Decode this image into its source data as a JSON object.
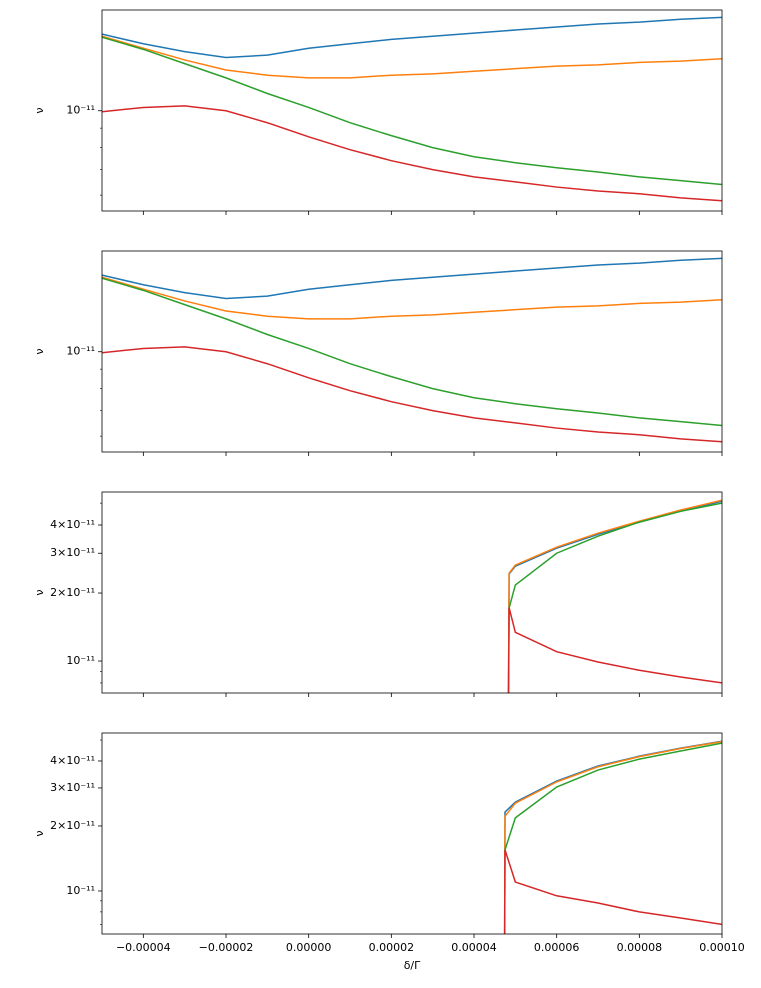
{
  "chart_data": [
    {
      "type": "line",
      "ylabel": "ν",
      "log_y": true,
      "xlim": [
        -5e-05,
        0.0001
      ],
      "xticks": [
        -4e-05,
        -2e-05,
        0,
        2e-05,
        4e-05,
        6e-05,
        8e-05,
        0.0001
      ],
      "ylim": [
        5.45e-12,
        1.84e-11
      ],
      "yticks": [
        {
          "value": 1e-11,
          "label": "10⁻¹¹"
        }
      ],
      "yminorticks": [
        6e-12,
        7e-12,
        8e-12,
        9e-12
      ],
      "x": [
        -5e-05,
        -4e-05,
        -3e-05,
        -2e-05,
        -1e-05,
        0,
        1e-05,
        2e-05,
        3e-05,
        4e-05,
        5e-05,
        6e-05,
        7e-05,
        8e-05,
        9e-05,
        0.0001
      ],
      "series": [
        {
          "color": "#1f77b4",
          "values": [
            1.59e-11,
            1.5e-11,
            1.43e-11,
            1.38e-11,
            1.4e-11,
            1.46e-11,
            1.5e-11,
            1.54e-11,
            1.57e-11,
            1.6e-11,
            1.63e-11,
            1.66e-11,
            1.69e-11,
            1.71e-11,
            1.74e-11,
            1.76e-11
          ]
        },
        {
          "color": "#ff7f0e",
          "values": [
            1.57e-11,
            1.46e-11,
            1.36e-11,
            1.28e-11,
            1.24e-11,
            1.22e-11,
            1.22e-11,
            1.24e-11,
            1.25e-11,
            1.27e-11,
            1.29e-11,
            1.31e-11,
            1.32e-11,
            1.34e-11,
            1.35e-11,
            1.37e-11
          ]
        },
        {
          "color": "#2ca02c",
          "values": [
            1.56e-11,
            1.45e-11,
            1.33e-11,
            1.22e-11,
            1.11e-11,
            1.02e-11,
            9.3e-12,
            8.6e-12,
            8e-12,
            7.57e-12,
            7.3e-12,
            7.08e-12,
            6.9e-12,
            6.7e-12,
            6.55e-12,
            6.4e-12
          ]
        },
        {
          "color": "#d62728",
          "values": [
            9.94e-12,
            1.02e-11,
            1.03e-11,
            1e-11,
            9.3e-12,
            8.54e-12,
            7.9e-12,
            7.39e-12,
            7e-12,
            6.7e-12,
            6.5e-12,
            6.3e-12,
            6.15e-12,
            6.05e-12,
            5.9e-12,
            5.8e-12
          ]
        }
      ]
    },
    {
      "type": "line",
      "ylabel": "ν",
      "log_y": true,
      "xlim": [
        -5e-05,
        0.0001
      ],
      "xticks": [
        -4e-05,
        -2e-05,
        0,
        2e-05,
        4e-05,
        6e-05,
        8e-05,
        0.0001
      ],
      "ylim": [
        5.45e-12,
        1.84e-11
      ],
      "yticks": [
        {
          "value": 1e-11,
          "label": "10⁻¹¹"
        }
      ],
      "yminorticks": [
        6e-12,
        7e-12,
        8e-12,
        9e-12
      ],
      "x": [
        -5e-05,
        -4e-05,
        -3e-05,
        -2e-05,
        -1e-05,
        0,
        1e-05,
        2e-05,
        3e-05,
        4e-05,
        5e-05,
        6e-05,
        7e-05,
        8e-05,
        9e-05,
        0.0001
      ],
      "series": [
        {
          "color": "#1f77b4",
          "values": [
            1.59e-11,
            1.5e-11,
            1.43e-11,
            1.38e-11,
            1.4e-11,
            1.46e-11,
            1.5e-11,
            1.54e-11,
            1.57e-11,
            1.6e-11,
            1.63e-11,
            1.66e-11,
            1.69e-11,
            1.71e-11,
            1.74e-11,
            1.76e-11
          ]
        },
        {
          "color": "#ff7f0e",
          "values": [
            1.57e-11,
            1.46e-11,
            1.36e-11,
            1.28e-11,
            1.24e-11,
            1.22e-11,
            1.22e-11,
            1.24e-11,
            1.25e-11,
            1.27e-11,
            1.29e-11,
            1.31e-11,
            1.32e-11,
            1.34e-11,
            1.35e-11,
            1.37e-11
          ]
        },
        {
          "color": "#2ca02c",
          "values": [
            1.56e-11,
            1.45e-11,
            1.33e-11,
            1.22e-11,
            1.11e-11,
            1.02e-11,
            9.3e-12,
            8.6e-12,
            8e-12,
            7.57e-12,
            7.3e-12,
            7.08e-12,
            6.9e-12,
            6.7e-12,
            6.55e-12,
            6.4e-12
          ]
        },
        {
          "color": "#d62728",
          "values": [
            9.94e-12,
            1.02e-11,
            1.03e-11,
            1e-11,
            9.3e-12,
            8.54e-12,
            7.9e-12,
            7.39e-12,
            7e-12,
            6.7e-12,
            6.5e-12,
            6.3e-12,
            6.15e-12,
            6.05e-12,
            5.9e-12,
            5.8e-12
          ]
        }
      ]
    },
    {
      "type": "line",
      "ylabel": "ν",
      "log_y": true,
      "xlim": [
        -5e-05,
        0.0001
      ],
      "xticks": [
        -4e-05,
        -2e-05,
        0,
        2e-05,
        4e-05,
        6e-05,
        8e-05,
        0.0001
      ],
      "ylim": [
        7.22e-12,
        5.6e-11
      ],
      "yticks": [
        {
          "value": 1e-11,
          "label": "10⁻¹¹"
        },
        {
          "value": 2e-11,
          "label": "2×10⁻¹¹"
        },
        {
          "value": 3e-11,
          "label": "3×10⁻¹¹"
        },
        {
          "value": 4e-11,
          "label": "4×10⁻¹¹"
        }
      ],
      "yminorticks": [
        8e-12,
        9e-12,
        5e-11
      ],
      "series": [
        {
          "color": "#1f77b4",
          "x": [
            4.83e-05,
            4.85e-05,
            5e-05,
            6e-05,
            7e-05,
            8e-05,
            9e-05,
            0.0001
          ],
          "values": [
            5e-12,
            2.43e-11,
            2.63e-11,
            3.16e-11,
            3.64e-11,
            4.12e-11,
            4.61e-11,
            5.1e-11
          ]
        },
        {
          "color": "#ff7f0e",
          "x": [
            4.83e-05,
            4.85e-05,
            5e-05,
            6e-05,
            7e-05,
            8e-05,
            9e-05,
            0.0001
          ],
          "values": [
            5e-12,
            2.45e-11,
            2.66e-11,
            3.19e-11,
            3.68e-11,
            4.16e-11,
            4.66e-11,
            5.15e-11
          ]
        },
        {
          "color": "#2ca02c",
          "x": [
            4.85e-05,
            5e-05,
            6e-05,
            7e-05,
            8e-05,
            9e-05,
            0.0001
          ],
          "values": [
            1.72e-11,
            2.17e-11,
            3e-11,
            3.57e-11,
            4.12e-11,
            4.6e-11,
            5e-11
          ]
        },
        {
          "color": "#d62728",
          "x": [
            4.83e-05,
            4.85e-05,
            5e-05,
            6e-05,
            7e-05,
            8e-05,
            9e-05,
            0.0001
          ],
          "values": [
            5e-12,
            1.72e-11,
            1.34e-11,
            1.1e-11,
            9.9e-12,
            9.1e-12,
            8.5e-12,
            8e-12
          ]
        }
      ]
    },
    {
      "type": "line",
      "ylabel": "ν",
      "xlabel": "δ/Γ",
      "log_y": true,
      "xlim": [
        -5e-05,
        0.0001
      ],
      "xticks": [
        {
          "value": -4e-05,
          "label": "−0.00004"
        },
        {
          "value": -2e-05,
          "label": "−0.00002"
        },
        {
          "value": 0,
          "label": "0.00000"
        },
        {
          "value": 2e-05,
          "label": "0.00002"
        },
        {
          "value": 4e-05,
          "label": "0.00004"
        },
        {
          "value": 6e-05,
          "label": "0.00006"
        },
        {
          "value": 8e-05,
          "label": "0.00008"
        },
        {
          "value": 0.0001,
          "label": "0.00010"
        }
      ],
      "ylim": [
        6.32e-12,
        5.39e-11
      ],
      "yticks": [
        {
          "value": 1e-11,
          "label": "10⁻¹¹"
        },
        {
          "value": 2e-11,
          "label": "2×10⁻¹¹"
        },
        {
          "value": 3e-11,
          "label": "3×10⁻¹¹"
        },
        {
          "value": 4e-11,
          "label": "4×10⁻¹¹"
        }
      ],
      "yminorticks": [
        7e-12,
        8e-12,
        9e-12,
        5e-11
      ],
      "series": [
        {
          "color": "#1f77b4",
          "x": [
            4.74e-05,
            4.75e-05,
            5e-05,
            6e-05,
            7e-05,
            8e-05,
            9e-05,
            0.0001
          ],
          "values": [
            5e-12,
            2.32e-11,
            2.58e-11,
            3.23e-11,
            3.79e-11,
            4.21e-11,
            4.59e-11,
            4.94e-11
          ]
        },
        {
          "color": "#ff7f0e",
          "x": [
            4.74e-05,
            4.75e-05,
            5e-05,
            6e-05,
            7e-05,
            8e-05,
            9e-05,
            0.0001
          ],
          "values": [
            5e-12,
            2.22e-11,
            2.55e-11,
            3.2e-11,
            3.76e-11,
            4.19e-11,
            4.57e-11,
            4.92e-11
          ]
        },
        {
          "color": "#2ca02c",
          "x": [
            4.75e-05,
            5e-05,
            6e-05,
            7e-05,
            8e-05,
            9e-05,
            0.0001
          ],
          "values": [
            1.55e-11,
            2.18e-11,
            3.03e-11,
            3.63e-11,
            4.08e-11,
            4.45e-11,
            4.84e-11
          ]
        },
        {
          "color": "#d62728",
          "x": [
            4.74e-05,
            4.75e-05,
            5e-05,
            6e-05,
            7e-05,
            8e-05,
            9e-05,
            0.0001
          ],
          "values": [
            5e-12,
            1.55e-11,
            1.1e-11,
            9.5e-12,
            8.8e-12,
            8e-12,
            7.5e-12,
            7e-12
          ]
        }
      ]
    }
  ]
}
